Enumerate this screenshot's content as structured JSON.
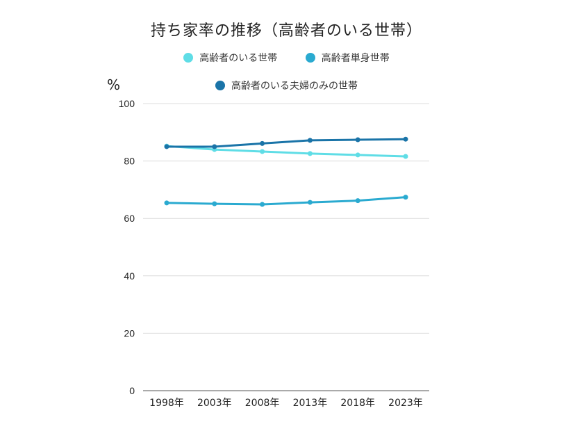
{
  "chart_data": {
    "type": "line",
    "title": "持ち家率の推移（高齢者のいる世帯）",
    "xlabel": "",
    "ylabel": "%",
    "categories": [
      "1998年",
      "2003年",
      "2008年",
      "2013年",
      "2018年",
      "2023年"
    ],
    "ylim": [
      0,
      100
    ],
    "yticks": [
      0,
      20,
      40,
      60,
      80,
      100
    ],
    "grid": true,
    "legend_position": "top",
    "series": [
      {
        "name": "高齢者のいる世帯",
        "color": "#5fdde6",
        "values": [
          85.2,
          84.0,
          83.3,
          82.6,
          82.1,
          81.6
        ]
      },
      {
        "name": "高齢者単身世帯",
        "color": "#2aaad0",
        "values": [
          65.4,
          65.1,
          64.9,
          65.6,
          66.2,
          67.4
        ]
      },
      {
        "name": "高齢者のいる夫婦のみの世帯",
        "color": "#1a74a8",
        "values": [
          85.0,
          85.0,
          86.1,
          87.2,
          87.4,
          87.6
        ]
      }
    ]
  }
}
